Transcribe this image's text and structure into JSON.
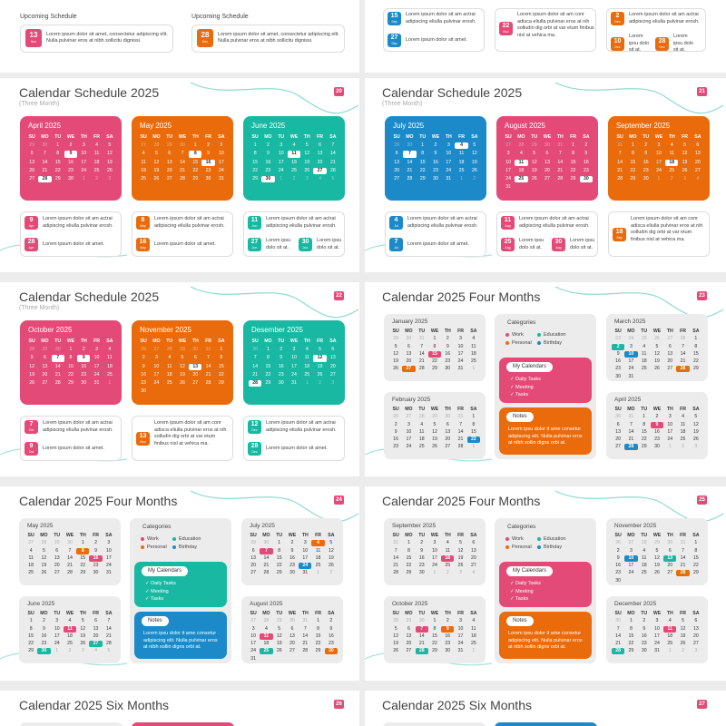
{
  "colors": {
    "pink": "#e44a77",
    "orange": "#ea6b0c",
    "teal": "#19b8a2",
    "blue": "#1c8ac9",
    "gray": "#ececec"
  },
  "weekdays": [
    "SU",
    "MO",
    "TU",
    "WE",
    "TH",
    "FR",
    "SA"
  ],
  "lorem": {
    "long": "Lorem ipsum dolor sit amet, consectetur adipiscing elit. Nulla pulvinar eros at nibh sollicitu dignissi.",
    "a": "Lorem ipsum dolor sit am actrai adipiscing eliulla pulvinar erosh.",
    "b": "Lorem ipsum dolor sit amet.",
    "c": "Lorem ipsum dolor sit am conr adisca eliulla pulvinar eros at nih solludin dig orbi at var etum finibus nisl at vehica ma.",
    "d": "Lorem ipsu dolo sit at."
  },
  "cat": {
    "title": "Categories",
    "work": "Work",
    "education": "Education",
    "personal": "Personal",
    "birthday": "Birthday",
    "mycal": "My Calendars",
    "daily": "✓ Daily Tasks",
    "meeting": "✓ Meeting",
    "tasks": "✓ Tasks",
    "notes": "Notes",
    "notes_text": "Lorem ipsu dolor it ame consetur adipiscing elit. Nulla pulvinar eros at nibh sollin digns orbi at."
  },
  "partial": {
    "upcoming_label": "Upcoming Schedule",
    "b1_day": "13",
    "b1_mo": "Nov",
    "b2_day": "28",
    "b2_mo": "Dec",
    "r": [
      {
        "d": "15",
        "m": "Sep"
      },
      {
        "d": "27",
        "m": "Sep"
      },
      {
        "d": "22",
        "m": "Nov"
      },
      {
        "d": "2",
        "m": "Dec"
      },
      {
        "d": "10",
        "m": "Dec"
      },
      {
        "d": "28",
        "m": "Dec"
      }
    ]
  },
  "slides": [
    {
      "num": "20",
      "title": "Calendar Schedule 2025",
      "sub": "(Three Month)",
      "months": [
        {
          "name": "April 2025",
          "color": "#e44a77",
          "start": 2,
          "days": 30,
          "prev": 30,
          "hl": [
            9,
            28
          ]
        },
        {
          "name": "May 2025",
          "color": "#ea6b0c",
          "start": 4,
          "days": 31,
          "prev": 30,
          "hl": [
            8,
            16
          ]
        },
        {
          "name": "June 2025",
          "color": "#19b8a2",
          "start": 0,
          "days": 30,
          "prev": 31,
          "hl": [
            11,
            27,
            30
          ]
        }
      ],
      "notes": [
        {
          "d": "9",
          "m": "Apr",
          "t": "a",
          "c": "#e44a77"
        },
        {
          "d": "28",
          "m": "Apr",
          "t": "b",
          "c": "#e44a77"
        },
        {
          "d": "8",
          "m": "May",
          "t": "a",
          "c": "#ea6b0c"
        },
        {
          "d": "16",
          "m": "May",
          "t": "b",
          "c": "#ea6b0c"
        },
        {
          "d": "11",
          "m": "Jun",
          "t": "a",
          "c": "#19b8a2"
        },
        {
          "d": "27",
          "m": "Jun",
          "t": "d",
          "c": "#19b8a2"
        },
        {
          "d": "30",
          "m": "Jun",
          "t": "d",
          "c": "#19b8a2"
        }
      ]
    },
    {
      "num": "21",
      "title": "Calendar Schedule 2025",
      "sub": "(Three Month)",
      "months": [
        {
          "name": "July 2025",
          "color": "#1c8ac9",
          "start": 2,
          "days": 31,
          "prev": 30,
          "hl": [
            4,
            7
          ]
        },
        {
          "name": "August 2025",
          "color": "#e44a77",
          "start": 5,
          "days": 31,
          "prev": 31,
          "hl": [
            11,
            25,
            30
          ]
        },
        {
          "name": "September 2025",
          "color": "#ea6b0c",
          "start": 1,
          "days": 30,
          "prev": 31,
          "hl": [
            18
          ]
        }
      ],
      "notes": [
        {
          "d": "4",
          "m": "Jul",
          "t": "a",
          "c": "#1c8ac9"
        },
        {
          "d": "7",
          "m": "Jul",
          "t": "b",
          "c": "#1c8ac9"
        },
        {
          "d": "11",
          "m": "Aug",
          "t": "a",
          "c": "#e44a77"
        },
        {
          "d": "25",
          "m": "Aug",
          "t": "d",
          "c": "#e44a77"
        },
        {
          "d": "30",
          "m": "Aug",
          "t": "d",
          "c": "#e44a77"
        },
        {
          "d": "18",
          "m": "Sep",
          "t": "c",
          "c": "#ea6b0c"
        }
      ]
    },
    {
      "num": "22",
      "title": "Calendar Schedule 2025",
      "sub": "(Three Month)",
      "months": [
        {
          "name": "October 2025",
          "color": "#e44a77",
          "start": 3,
          "days": 31,
          "prev": 30,
          "hl": [
            7,
            9
          ]
        },
        {
          "name": "November 2025",
          "color": "#ea6b0c",
          "start": 6,
          "days": 30,
          "prev": 31,
          "hl": [
            13
          ]
        },
        {
          "name": "Desember 2025",
          "color": "#19b8a2",
          "start": 1,
          "days": 31,
          "prev": 30,
          "hl": [
            12,
            28
          ]
        }
      ],
      "notes": [
        {
          "d": "7",
          "m": "Oct",
          "t": "a",
          "c": "#e44a77"
        },
        {
          "d": "9",
          "m": "Oct",
          "t": "b",
          "c": "#e44a77"
        },
        {
          "d": "13",
          "m": "Nov",
          "t": "c",
          "c": "#ea6b0c"
        },
        {
          "d": "12",
          "m": "Dec",
          "t": "a",
          "c": "#19b8a2"
        },
        {
          "d": "28",
          "m": "Dec",
          "t": "b",
          "c": "#19b8a2"
        }
      ]
    },
    {
      "num": "23",
      "title": "Calendar 2025 Four Months",
      "months": [
        {
          "name": "January 2025",
          "start": 3,
          "days": 31,
          "prev": 31,
          "hl": [
            {
              "d": 15,
              "c": "#e44a77"
            },
            {
              "d": 27,
              "c": "#ea6b0c"
            }
          ]
        },
        {
          "name": "February 2025",
          "start": 6,
          "days": 28,
          "prev": 31,
          "hl": [
            {
              "d": 22,
              "c": "#1c8ac9"
            }
          ]
        },
        {
          "name": "March 2025",
          "start": 6,
          "days": 31,
          "prev": 28,
          "hl": [
            {
              "d": 2,
              "c": "#19b8a2"
            },
            {
              "d": 10,
              "c": "#1c8ac9"
            },
            {
              "d": 28,
              "c": "#ea6b0c"
            }
          ]
        },
        {
          "name": "April 2025",
          "start": 2,
          "days": 30,
          "prev": 31,
          "hl": [
            {
              "d": 9,
              "c": "#e44a77"
            },
            {
              "d": 28,
              "c": "#1c8ac9"
            }
          ]
        }
      ],
      "mycal": "#e44a77",
      "notes": "#ea6b0c"
    },
    {
      "num": "24",
      "title": "Calendar 2025 Four Months",
      "months": [
        {
          "name": "May 2025",
          "start": 4,
          "days": 31,
          "prev": 30,
          "hl": [
            {
              "d": 8,
              "c": "#ea6b0c"
            },
            {
              "d": 16,
              "c": "#e44a77"
            }
          ]
        },
        {
          "name": "June 2025",
          "start": 0,
          "days": 30,
          "prev": 31,
          "hl": [
            {
              "d": 11,
              "c": "#e44a77"
            },
            {
              "d": 27,
              "c": "#19b8a2"
            },
            {
              "d": 30,
              "c": "#19b8a2"
            }
          ]
        },
        {
          "name": "July 2025",
          "start": 2,
          "days": 31,
          "prev": 30,
          "hl": [
            {
              "d": 4,
              "c": "#ea6b0c"
            },
            {
              "d": 7,
              "c": "#e44a77"
            },
            {
              "d": 24,
              "c": "#1c8ac9"
            }
          ]
        },
        {
          "name": "August 2025",
          "start": 5,
          "days": 31,
          "prev": 31,
          "hl": [
            {
              "d": 11,
              "c": "#e44a77"
            },
            {
              "d": 25,
              "c": "#19b8a2"
            },
            {
              "d": 30,
              "c": "#ea6b0c"
            }
          ]
        }
      ],
      "mycal": "#19b8a2",
      "notes": "#1c8ac9"
    },
    {
      "num": "25",
      "title": "Calendar 2025 Four Months",
      "months": [
        {
          "name": "September 2025",
          "start": 1,
          "days": 30,
          "prev": 31,
          "hl": [
            {
              "d": 18,
              "c": "#e44a77"
            }
          ]
        },
        {
          "name": "October 2025",
          "start": 3,
          "days": 31,
          "prev": 30,
          "hl": [
            {
              "d": 7,
              "c": "#e44a77"
            },
            {
              "d": 9,
              "c": "#ea6b0c"
            },
            {
              "d": 28,
              "c": "#19b8a2"
            }
          ]
        },
        {
          "name": "November 2025",
          "start": 6,
          "days": 30,
          "prev": 31,
          "hl": [
            {
              "d": 10,
              "c": "#1c8ac9"
            },
            {
              "d": 13,
              "c": "#19b8a2"
            },
            {
              "d": 28,
              "c": "#ea6b0c"
            }
          ]
        },
        {
          "name": "December 2025",
          "start": 1,
          "days": 31,
          "prev": 30,
          "hl": [
            {
              "d": 11,
              "c": "#e44a77"
            },
            {
              "d": 28,
              "c": "#19b8a2"
            }
          ]
        }
      ],
      "mycal": "#e44a77",
      "notes": "#ea6b0c"
    },
    {
      "num": "26",
      "title": "Calendar 2025 Six Months"
    },
    {
      "num": "27",
      "title": "Calendar 2025 Six Months"
    }
  ]
}
